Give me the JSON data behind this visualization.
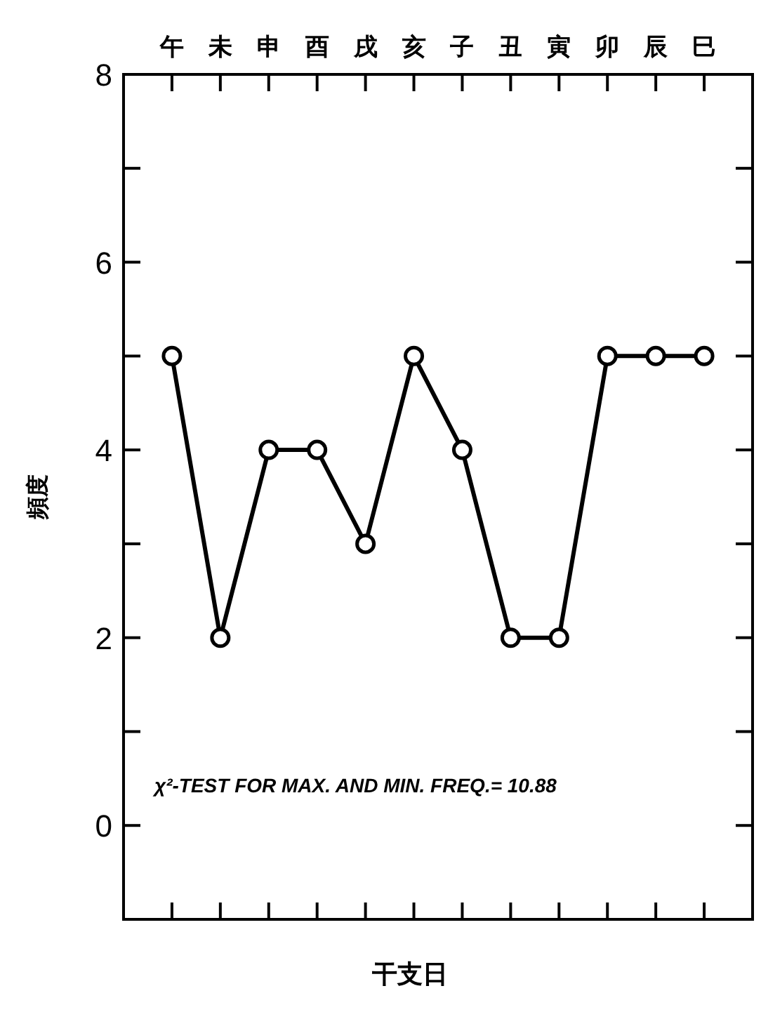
{
  "chart_data": {
    "type": "line",
    "categories": [
      "午",
      "未",
      "申",
      "酉",
      "戌",
      "亥",
      "子",
      "丑",
      "寅",
      "卯",
      "辰",
      "巳"
    ],
    "series": [
      {
        "color": "#000000",
        "values": [
          5,
          2,
          4,
          4,
          3,
          5,
          4,
          2,
          2,
          5,
          5,
          5
        ]
      }
    ],
    "ylim": [
      -1,
      8
    ],
    "yticks": [
      {
        "value": -1,
        "label": null
      },
      0,
      {
        "value": 1,
        "label": null
      },
      2,
      {
        "value": 3,
        "label": null
      },
      4,
      {
        "value": 5,
        "label": null
      },
      6,
      {
        "value": 7,
        "label": null
      },
      8
    ],
    "xlabel": "干支日",
    "ylabel": "頻度",
    "annotations": [
      "χ²-TEST FOR MAX. AND MIN. FREQ.= 10.88"
    ],
    "marker": "circle",
    "line_style": "solid"
  }
}
